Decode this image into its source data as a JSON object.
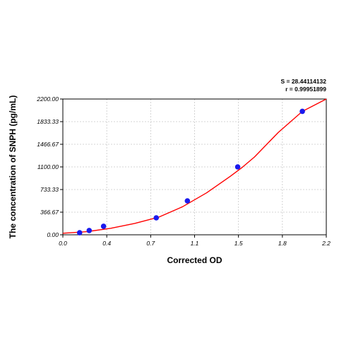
{
  "chart_data": {
    "type": "scatter",
    "title": "",
    "xlabel": "Corrected OD",
    "ylabel": "The concentration of SNPH (pg/mL)",
    "xlim": [
      0.0,
      2.2
    ],
    "ylim": [
      0.0,
      2200.0
    ],
    "x_ticks": [
      "0.0",
      "0.4",
      "0.7",
      "1.1",
      "1.5",
      "1.8",
      "2.2"
    ],
    "y_ticks": [
      "0.00",
      "366.67",
      "733.33",
      "1100.00",
      "1466.67",
      "1833.33",
      "2200.00"
    ],
    "grid": true,
    "annotations": {
      "s_value": "S = 28.44114132",
      "r_value": "r = 0.99951899"
    },
    "colors": {
      "curve": "#ff0000",
      "points": "#1a1aee",
      "grid": "#c8c8c8"
    },
    "series": [
      {
        "type": "scatter",
        "x": [
          0.14,
          0.22,
          0.34,
          0.78,
          1.04,
          1.46,
          2.0
        ],
        "y": [
          34,
          69,
          138,
          275,
          550,
          1100,
          2000
        ]
      },
      {
        "type": "line",
        "x": [
          0.0,
          0.2,
          0.4,
          0.6,
          0.8,
          1.0,
          1.2,
          1.4,
          1.5,
          1.6,
          1.8,
          2.0,
          2.2
        ],
        "y": [
          25,
          50,
          105,
          185,
          285,
          455,
          680,
          950,
          1095,
          1260,
          1660,
          2000,
          2200
        ]
      }
    ]
  }
}
